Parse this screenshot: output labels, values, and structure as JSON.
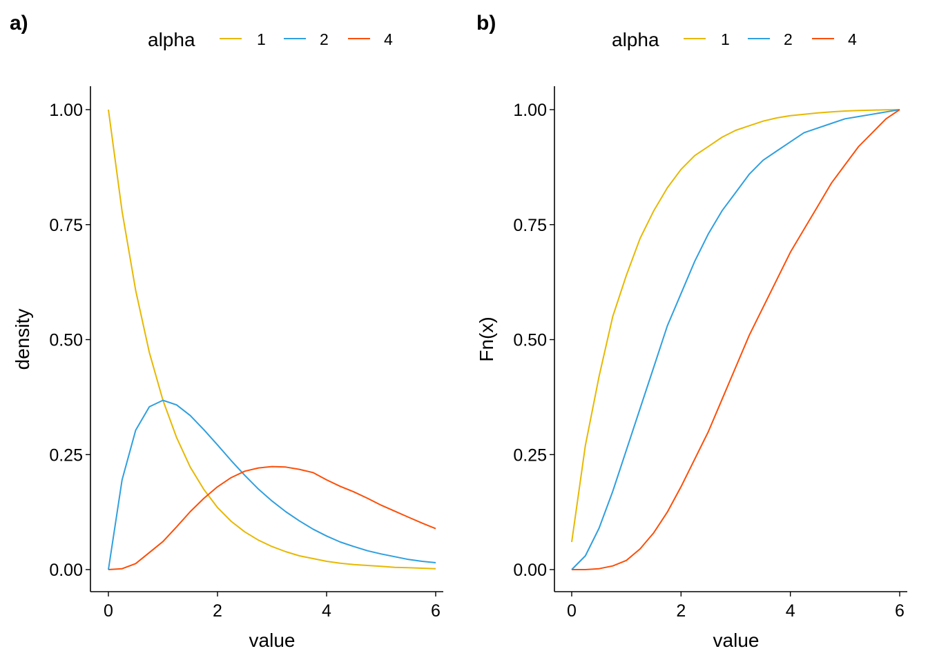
{
  "panels": [
    {
      "tag": "a)"
    },
    {
      "tag": "b)"
    }
  ],
  "legend": {
    "title": "alpha",
    "entries": [
      {
        "label": "1",
        "color": "#E7B800"
      },
      {
        "label": "2",
        "color": "#2E9FDF"
      },
      {
        "label": "4",
        "color": "#FC4E07"
      }
    ]
  },
  "chart_data": [
    {
      "type": "line",
      "panel": "a)",
      "xlabel": "value",
      "ylabel": "density",
      "xlim": [
        0,
        6
      ],
      "ylim": [
        0,
        1
      ],
      "x_ticks": [
        0,
        2,
        4,
        6
      ],
      "x_tick_labels": [
        "0",
        "2",
        "4",
        "6"
      ],
      "y_ticks": [
        0,
        0.25,
        0.5,
        0.75,
        1
      ],
      "y_tick_labels": [
        "0.00",
        "0.25",
        "0.50",
        "0.75",
        "1.00"
      ],
      "grid": false,
      "legend_position": "top",
      "x": [
        0,
        0.25,
        0.5,
        0.75,
        1,
        1.25,
        1.5,
        1.75,
        2,
        2.25,
        2.5,
        2.75,
        3,
        3.25,
        3.5,
        3.75,
        4,
        4.25,
        4.5,
        4.75,
        5,
        5.25,
        5.5,
        5.75,
        6
      ],
      "series": [
        {
          "name": "1",
          "color": "#E7B800",
          "values": [
            1.0,
            0.779,
            0.607,
            0.472,
            0.368,
            0.287,
            0.223,
            0.174,
            0.135,
            0.105,
            0.082,
            0.064,
            0.05,
            0.039,
            0.03,
            0.024,
            0.018,
            0.014,
            0.011,
            0.009,
            0.007,
            0.005,
            0.004,
            0.003,
            0.002
          ]
        },
        {
          "name": "2",
          "color": "#2E9FDF",
          "values": [
            0.0,
            0.195,
            0.303,
            0.354,
            0.368,
            0.358,
            0.335,
            0.304,
            0.271,
            0.237,
            0.205,
            0.175,
            0.149,
            0.126,
            0.106,
            0.088,
            0.073,
            0.06,
            0.05,
            0.041,
            0.034,
            0.028,
            0.022,
            0.018,
            0.015
          ]
        },
        {
          "name": "4",
          "color": "#FC4E07",
          "values": [
            0.0,
            0.002,
            0.013,
            0.037,
            0.061,
            0.093,
            0.126,
            0.155,
            0.18,
            0.2,
            0.214,
            0.221,
            0.224,
            0.223,
            0.218,
            0.211,
            0.195,
            0.181,
            0.169,
            0.155,
            0.14,
            0.127,
            0.114,
            0.101,
            0.089
          ]
        }
      ]
    },
    {
      "type": "line",
      "panel": "b)",
      "xlabel": "value",
      "ylabel": "Fn(x)",
      "xlim": [
        0,
        6
      ],
      "ylim": [
        0,
        1
      ],
      "x_ticks": [
        0,
        2,
        4,
        6
      ],
      "x_tick_labels": [
        "0",
        "2",
        "4",
        "6"
      ],
      "y_ticks": [
        0,
        0.25,
        0.5,
        0.75,
        1
      ],
      "y_tick_labels": [
        "0.00",
        "0.25",
        "0.50",
        "0.75",
        "1.00"
      ],
      "grid": false,
      "legend_position": "top",
      "x": [
        0,
        0.25,
        0.5,
        0.75,
        1,
        1.25,
        1.5,
        1.75,
        2,
        2.25,
        2.5,
        2.75,
        3,
        3.25,
        3.5,
        3.75,
        4,
        4.25,
        4.5,
        4.75,
        5,
        5.25,
        5.5,
        5.75,
        6
      ],
      "series": [
        {
          "name": "1",
          "color": "#E7B800",
          "values": [
            0.06,
            0.27,
            0.42,
            0.55,
            0.64,
            0.72,
            0.78,
            0.83,
            0.87,
            0.9,
            0.92,
            0.94,
            0.955,
            0.965,
            0.975,
            0.982,
            0.987,
            0.99,
            0.993,
            0.995,
            0.997,
            0.998,
            0.999,
            0.9995,
            1.0
          ]
        },
        {
          "name": "2",
          "color": "#2E9FDF",
          "values": [
            0.0,
            0.03,
            0.09,
            0.17,
            0.26,
            0.35,
            0.44,
            0.53,
            0.6,
            0.67,
            0.73,
            0.78,
            0.82,
            0.86,
            0.89,
            0.91,
            0.93,
            0.95,
            0.96,
            0.97,
            0.98,
            0.985,
            0.99,
            0.995,
            1.0
          ]
        },
        {
          "name": "4",
          "color": "#FC4E07",
          "values": [
            0.0,
            0.0,
            0.002,
            0.008,
            0.02,
            0.045,
            0.08,
            0.125,
            0.18,
            0.24,
            0.3,
            0.37,
            0.44,
            0.51,
            0.57,
            0.63,
            0.69,
            0.74,
            0.79,
            0.84,
            0.88,
            0.92,
            0.95,
            0.98,
            1.0
          ]
        }
      ]
    }
  ]
}
